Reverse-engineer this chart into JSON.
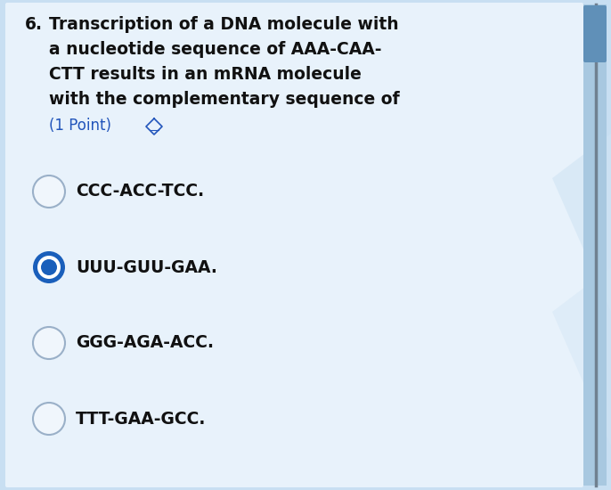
{
  "background_color": "#c8dff2",
  "panel_color": "#e8f2fb",
  "question_number": "6.",
  "question_text_lines": [
    "Transcription of a DNA molecule with",
    "a nucleotide sequence of AAA-CAA-",
    "CTT results in an mRNA molecule",
    "with the complementary sequence of"
  ],
  "points_text": "(1 Point)",
  "options": [
    {
      "label": "CCC-ACC-TCC.",
      "selected": false
    },
    {
      "label": "UUU-GUU-GAA.",
      "selected": true
    },
    {
      "label": "GGG-AGA-ACC.",
      "selected": false
    },
    {
      "label": "TTT-GAA-GCC.",
      "selected": false
    }
  ],
  "text_color": "#111111",
  "points_color": "#2255bb",
  "circle_color": "#f0f6fc",
  "circle_edge_color": "#9ab0c8",
  "selected_outer_color": "#1a5fbb",
  "selected_inner_color": "#1a5fbb",
  "font_size_question": 13.5,
  "font_size_options": 13.5,
  "font_size_points": 12.0,
  "scrollbar_bg": "#a8c8e0",
  "scrollbar_thumb": "#6090b8"
}
